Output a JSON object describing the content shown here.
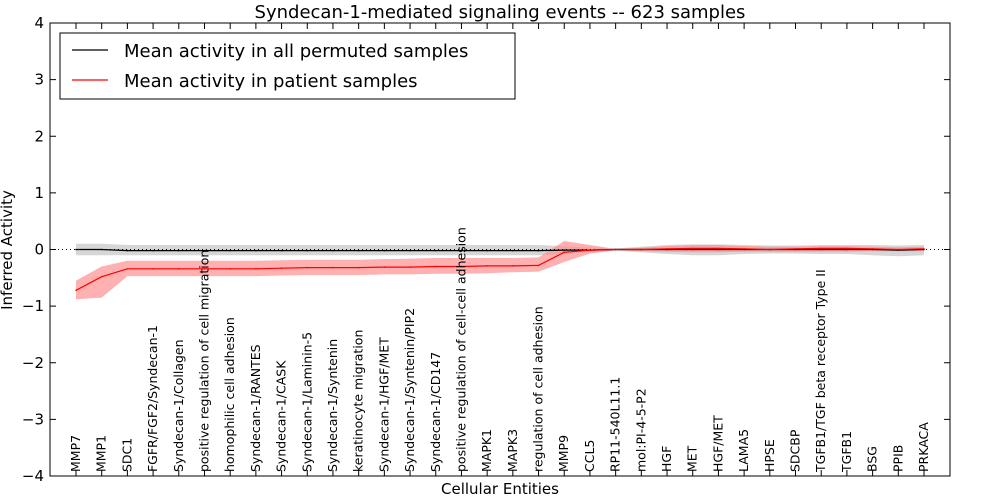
{
  "chart_data": {
    "type": "line",
    "title": "Syndecan-1-mediated signaling events -- 623 samples",
    "xlabel": "Cellular Entities",
    "ylabel": "Inferred Activity",
    "ylim": [
      -4,
      4
    ],
    "yticks": [
      -4,
      -3,
      -2,
      -1,
      0,
      1,
      2,
      3,
      4
    ],
    "ytick_labels": [
      "−4",
      "−3",
      "−2",
      "−1",
      "0",
      "1",
      "2",
      "3",
      "4"
    ],
    "legend_position": "top-left",
    "reference_line": 0,
    "categories": [
      "MMP7",
      "MMP1",
      "SDC1",
      "FGFR/FGF2/Syndecan-1",
      "Syndecan-1/Collagen",
      "positive regulation of cell migration",
      "homophilic cell adhesion",
      "Syndecan-1/RANTES",
      "Syndecan-1/CASK",
      "Syndecan-1/Laminin-5",
      "Syndecan-1/Syntenin",
      "keratinocyte migration",
      "Syndecan-1/HGF/MET",
      "Syndecan-1/Syntenin/PIP2",
      "Syndecan-1/CD147",
      "positive regulation of cell-cell adhesion",
      "MAPK1",
      "MAPK3",
      "regulation of cell adhesion",
      "MMP9",
      "CCL5",
      "RP11-540L11.1",
      "mol:PI-4-5-P2",
      "HGF",
      "MET",
      "HGF/MET",
      "LAMA5",
      "HPSE",
      "SDCBP",
      "TGFB1/TGF beta receptor Type II",
      "TGFB1",
      "BSG",
      "PPIB",
      "PRKACA"
    ],
    "series": [
      {
        "name": "Mean activity in all permuted samples",
        "color": "#000000",
        "band_color": "#c8c8c8",
        "values": [
          0.0,
          0.0,
          -0.02,
          -0.02,
          -0.02,
          -0.02,
          -0.02,
          -0.02,
          -0.02,
          -0.02,
          -0.02,
          -0.02,
          -0.02,
          -0.02,
          -0.02,
          -0.02,
          -0.02,
          -0.02,
          -0.02,
          -0.01,
          -0.01,
          0.0,
          0.0,
          0.0,
          0.0,
          0.0,
          0.0,
          0.0,
          0.0,
          0.0,
          0.0,
          0.0,
          -0.01,
          0.0
        ],
        "band_upper": [
          0.1,
          0.1,
          0.08,
          0.08,
          0.08,
          0.08,
          0.08,
          0.08,
          0.08,
          0.08,
          0.08,
          0.08,
          0.08,
          0.08,
          0.08,
          0.08,
          0.08,
          0.08,
          0.08,
          0.06,
          0.04,
          0.02,
          0.05,
          0.08,
          0.09,
          0.09,
          0.08,
          0.07,
          0.07,
          0.08,
          0.08,
          0.08,
          0.07,
          0.08
        ],
        "band_lower": [
          -0.1,
          -0.1,
          -0.1,
          -0.1,
          -0.1,
          -0.1,
          -0.1,
          -0.1,
          -0.1,
          -0.1,
          -0.1,
          -0.1,
          -0.1,
          -0.1,
          -0.1,
          -0.1,
          -0.1,
          -0.1,
          -0.1,
          -0.08,
          -0.05,
          -0.02,
          -0.05,
          -0.08,
          -0.1,
          -0.1,
          -0.08,
          -0.07,
          -0.07,
          -0.08,
          -0.08,
          -0.1,
          -0.12,
          -0.1
        ]
      },
      {
        "name": "Mean activity in patient samples",
        "color": "#ff0000",
        "band_color": "#ff9090",
        "values": [
          -0.72,
          -0.48,
          -0.34,
          -0.34,
          -0.34,
          -0.34,
          -0.34,
          -0.34,
          -0.33,
          -0.32,
          -0.32,
          -0.32,
          -0.31,
          -0.31,
          -0.3,
          -0.3,
          -0.29,
          -0.29,
          -0.28,
          -0.05,
          -0.01,
          0.0,
          0.0,
          0.01,
          0.02,
          0.02,
          0.01,
          0.0,
          0.01,
          0.02,
          0.02,
          0.01,
          0.0,
          0.01
        ],
        "band_upper": [
          -0.55,
          -0.3,
          -0.2,
          -0.2,
          -0.2,
          -0.2,
          -0.2,
          -0.2,
          -0.19,
          -0.18,
          -0.18,
          -0.18,
          -0.17,
          -0.16,
          -0.15,
          -0.15,
          -0.15,
          -0.15,
          -0.14,
          0.15,
          0.08,
          0.01,
          0.03,
          0.06,
          0.08,
          0.08,
          0.06,
          0.05,
          0.05,
          0.06,
          0.06,
          0.05,
          0.04,
          0.05
        ],
        "band_lower": [
          -0.88,
          -0.85,
          -0.47,
          -0.47,
          -0.47,
          -0.47,
          -0.47,
          -0.47,
          -0.46,
          -0.45,
          -0.45,
          -0.45,
          -0.44,
          -0.44,
          -0.43,
          -0.43,
          -0.42,
          -0.4,
          -0.39,
          -0.22,
          -0.07,
          -0.01,
          -0.03,
          -0.04,
          -0.05,
          -0.05,
          -0.04,
          -0.04,
          -0.04,
          -0.04,
          -0.04,
          -0.03,
          -0.03,
          -0.03
        ]
      }
    ]
  }
}
